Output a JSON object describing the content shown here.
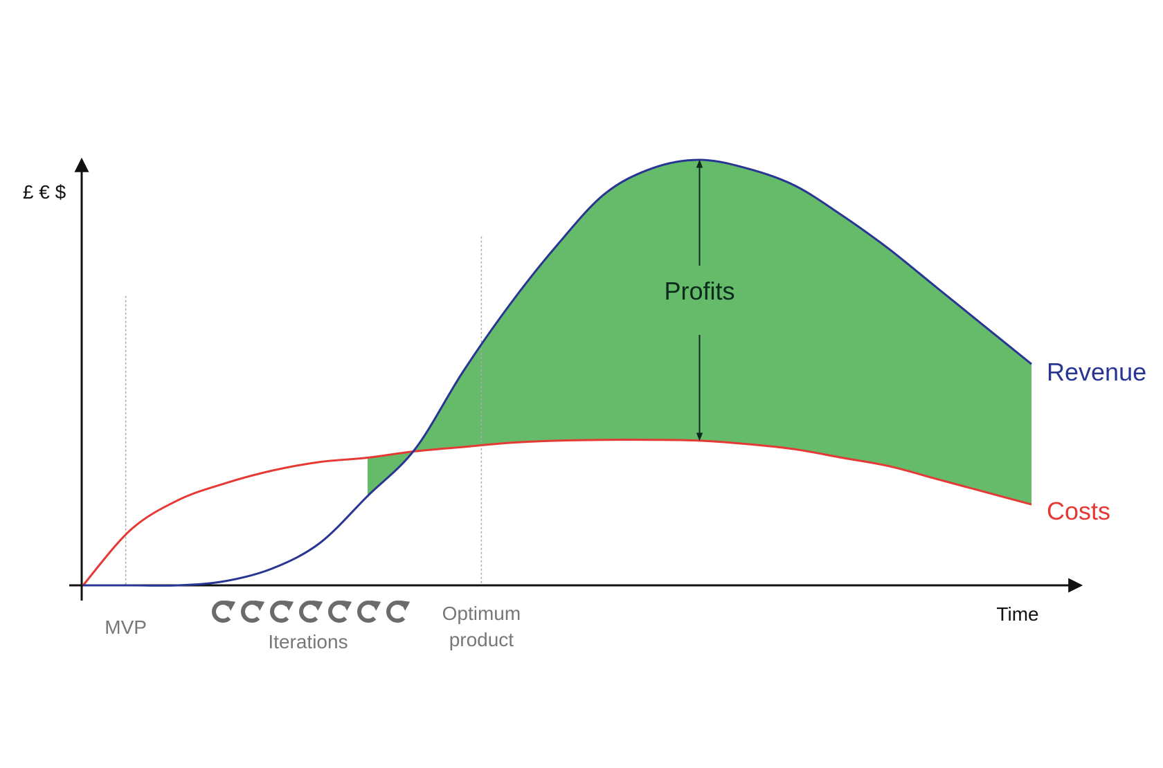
{
  "chart_data": {
    "type": "area",
    "ylabel": "£ € $",
    "xlabel": "Time",
    "x": [
      0,
      0.05,
      0.1,
      0.15,
      0.2,
      0.25,
      0.3,
      0.35,
      0.4,
      0.45,
      0.5,
      0.55,
      0.6,
      0.65,
      0.7,
      0.75,
      0.8,
      0.85,
      0.9,
      0.95,
      1.0
    ],
    "xlim": [
      0,
      1.1
    ],
    "ylim": [
      0,
      1.1
    ],
    "series": [
      {
        "name": "Revenue",
        "color": "#283593",
        "values": [
          0,
          0,
          0,
          0.01,
          0.04,
          0.1,
          0.21,
          0.32,
          0.5,
          0.66,
          0.8,
          0.92,
          0.98,
          1.0,
          0.98,
          0.94,
          0.87,
          0.79,
          0.7,
          0.61,
          0.52
        ]
      },
      {
        "name": "Costs",
        "color": "#e53935",
        "values": [
          0,
          0.13,
          0.2,
          0.24,
          0.27,
          0.29,
          0.3,
          0.315,
          0.325,
          0.335,
          0.34,
          0.342,
          0.342,
          0.34,
          0.332,
          0.32,
          0.3,
          0.28,
          0.25,
          0.22,
          0.19
        ]
      }
    ],
    "fill_between": {
      "color": "#66bb6a",
      "x_from": 0.3,
      "x_to": 1.0
    },
    "markers": [
      {
        "label": "MVP",
        "x": 0.045,
        "line_top": 0.68
      },
      {
        "label": "Optimum\nproduct",
        "x": 0.42,
        "line_top": 0.82
      }
    ],
    "iterations": {
      "label": "Iterations",
      "icon": "refresh-icon",
      "count": 7
    },
    "annotation": {
      "label": "Profits",
      "x": 0.65
    },
    "grid": false,
    "legend": "direct-labels"
  }
}
